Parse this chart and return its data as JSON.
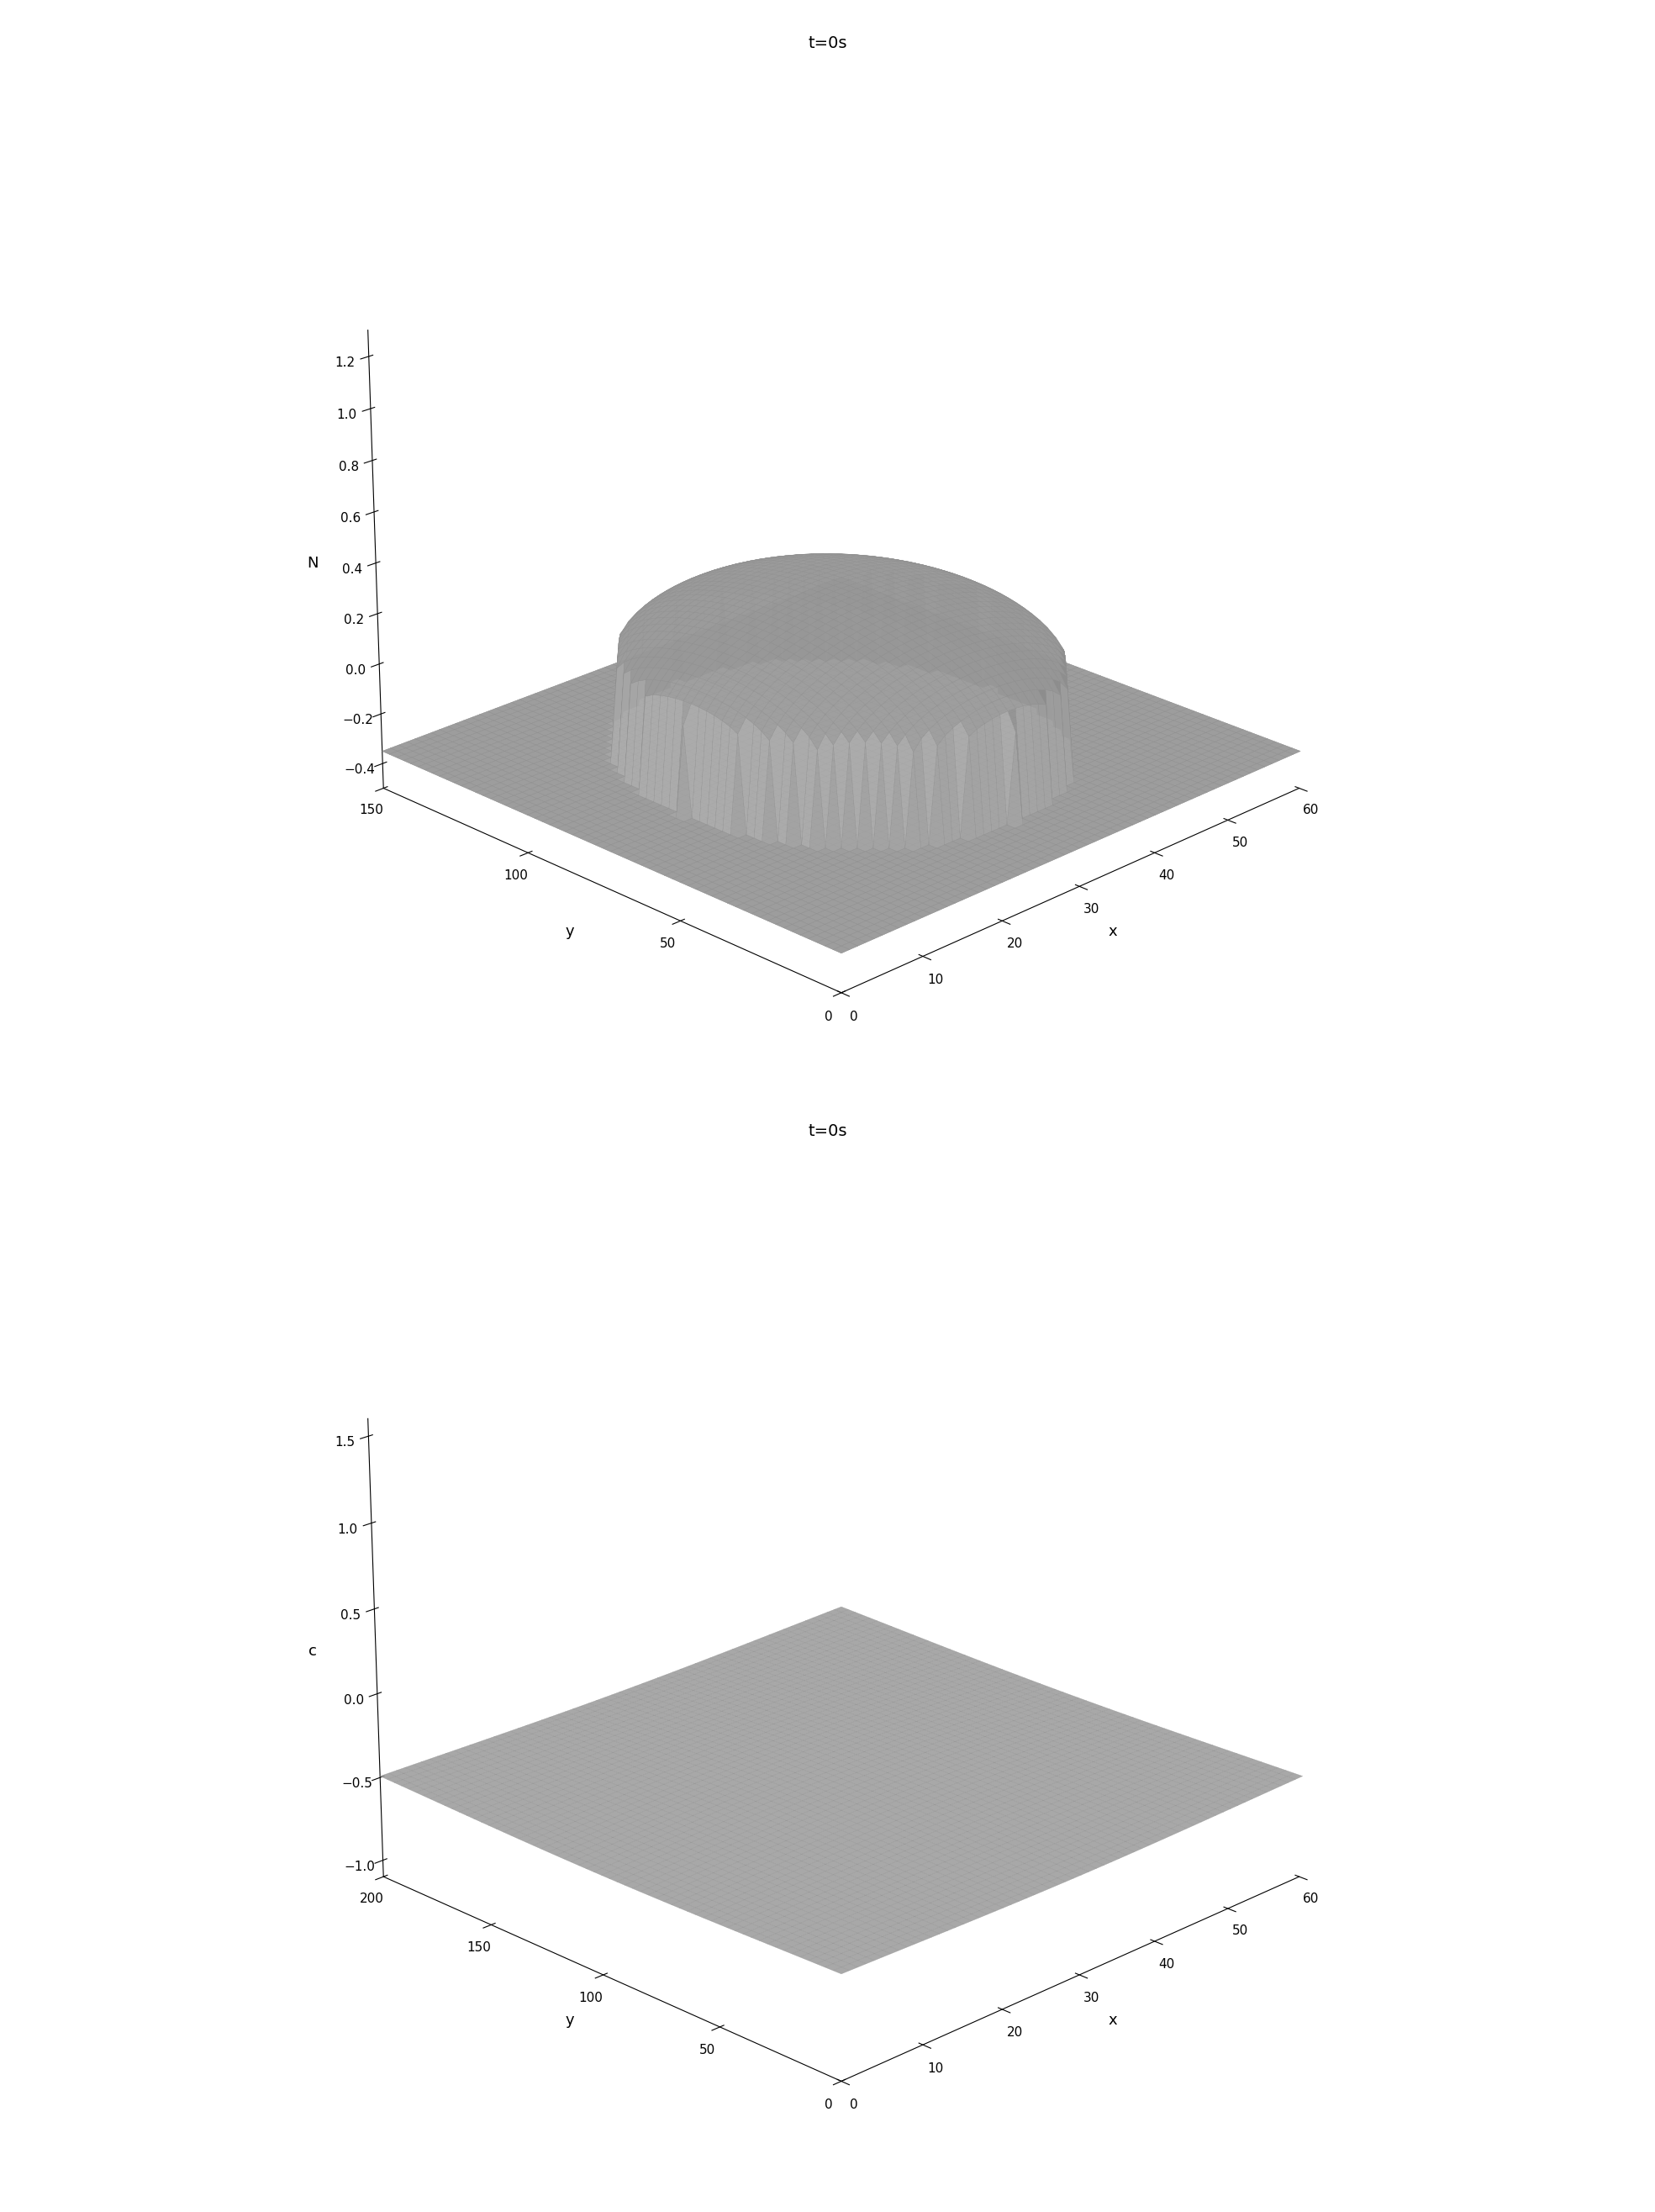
{
  "plot1": {
    "title": "t=0s",
    "xlabel": "x",
    "ylabel": "y",
    "zlabel": "N",
    "x_range": [
      0,
      60
    ],
    "y_range": [
      0,
      150
    ],
    "z_ticks": [
      -0.4,
      -0.2,
      0,
      0.2,
      0.4,
      0.6,
      0.8,
      1.0,
      1.2
    ],
    "x_ticks": [
      0,
      10,
      20,
      30,
      40,
      50,
      60
    ],
    "y_ticks": [
      0,
      50,
      100,
      150
    ],
    "elev": 22,
    "azim": 225
  },
  "plot2": {
    "title": "t=0s",
    "xlabel": "x",
    "ylabel": "y",
    "zlabel": "c",
    "x_range": [
      0,
      60
    ],
    "y_range": [
      0,
      200
    ],
    "z_ticks": [
      -1.0,
      -0.5,
      0,
      0.5,
      1.0,
      1.5
    ],
    "x_ticks": [
      0,
      10,
      20,
      30,
      40,
      50,
      60
    ],
    "y_ticks": [
      0,
      50,
      100,
      150,
      200
    ],
    "elev": 22,
    "azim": 225
  },
  "surface_color": "#c8c8c8",
  "edge_color": "#909090",
  "background_color": "#ffffff",
  "title_fontsize": 14,
  "label_fontsize": 13,
  "tick_fontsize": 11
}
